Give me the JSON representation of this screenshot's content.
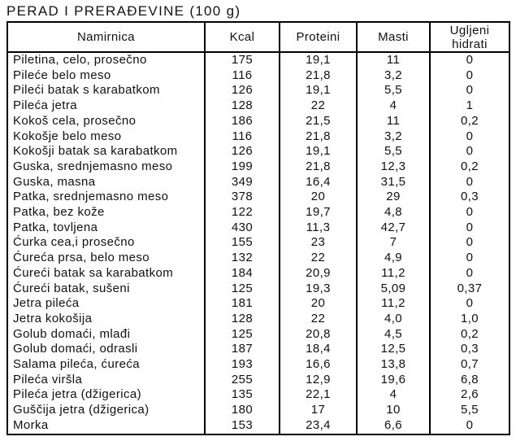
{
  "page_title": "PERAD I PRERAĐEVINE (100 g)",
  "colors": {
    "background": "#ffffff",
    "border": "#000000",
    "text": "#111111"
  },
  "chart_data": {
    "type": "table",
    "title": "PERAD I PRERAĐEVINE (100 g)",
    "columns": [
      "Namirnica",
      "Kcal",
      "Proteini",
      "Masti",
      "Ugljeni hidrati"
    ],
    "rows": [
      [
        "Piletina, celo, prosečno",
        "175",
        "19,1",
        "11",
        "0"
      ],
      [
        "Pileće belo meso",
        "116",
        "21,8",
        "3,2",
        "0"
      ],
      [
        "Pileći batak s karabatkom",
        "126",
        "19,1",
        "5,5",
        "0"
      ],
      [
        "Pileća jetra",
        "128",
        "22",
        "4",
        "1"
      ],
      [
        "Kokoš cela, prosečno",
        "186",
        "21,5",
        "11",
        "0,2"
      ],
      [
        "Kokošje belo meso",
        "116",
        "21,8",
        "3,2",
        "0"
      ],
      [
        "Kokošji batak sa karabatkom",
        "126",
        "19,1",
        "5,5",
        "0"
      ],
      [
        "Guska, srednjemasno meso",
        "199",
        "21,8",
        "12,3",
        "0,2"
      ],
      [
        "Guska, masna",
        "349",
        "16,4",
        "31,5",
        "0"
      ],
      [
        "Patka, srednjemasno meso",
        "378",
        "20",
        "29",
        "0,3"
      ],
      [
        "Patka, bez kože",
        "122",
        "19,7",
        "4,8",
        "0"
      ],
      [
        "Patka, tovljena",
        "430",
        "11,3",
        "42,7",
        "0"
      ],
      [
        "Ćurka cea,i prosečno",
        "155",
        "23",
        "7",
        "0"
      ],
      [
        "Ćureća prsa, belo meso",
        "132",
        "22",
        "4,9",
        "0"
      ],
      [
        "Ćureći batak sa karabatkom",
        "184",
        "20,9",
        "11,2",
        "0"
      ],
      [
        "Ćureći batak, sušeni",
        "125",
        "19,3",
        "5,09",
        "0,37"
      ],
      [
        "Jetra pileća",
        "181",
        "20",
        "11,2",
        "0"
      ],
      [
        "Jetra kokošija",
        "128",
        "22",
        "4,0",
        "1,0"
      ],
      [
        "Golub domaći, mlađi",
        "125",
        "20,8",
        "4,5",
        "0,2"
      ],
      [
        "Golub domaći, odrasli",
        "187",
        "18,4",
        "12,5",
        "0,3"
      ],
      [
        "Salama pileća, ćureća",
        "193",
        "16,6",
        "13,8",
        "0,7"
      ],
      [
        "Pileća viršla",
        "255",
        "12,9",
        "19,6",
        "6,8"
      ],
      [
        "Pileća jetra (džigerica)",
        "135",
        "22,1",
        "4",
        "2,6"
      ],
      [
        "Guščija jetra (džigerica)",
        "180",
        "17",
        "10",
        "5,5"
      ],
      [
        "Morka",
        "153",
        "23,4",
        "6,6",
        "0"
      ]
    ]
  }
}
